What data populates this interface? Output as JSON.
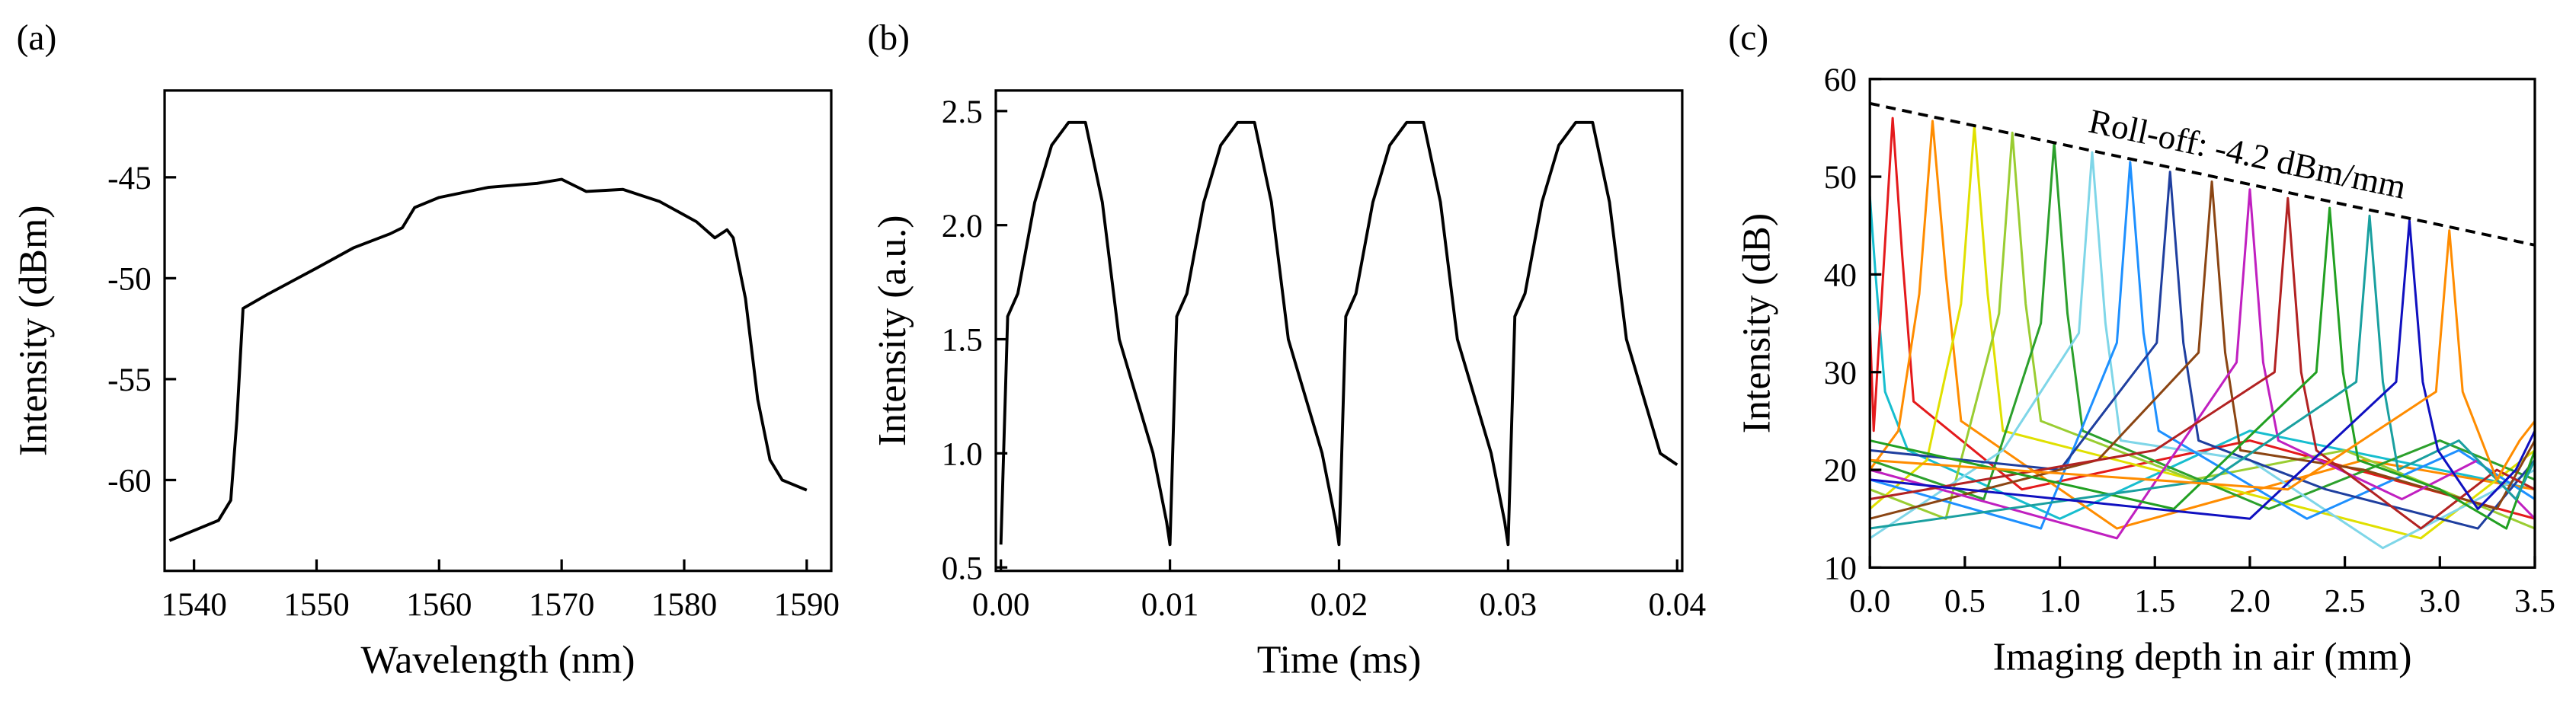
{
  "chart_data": [
    {
      "type": "line",
      "label": "(a)",
      "x_label": "Wavelength (nm)",
      "y_label": "Intensity (dBm)",
      "xlim": [
        1537.6,
        1592
      ],
      "ylim": [
        -64.5,
        -40.7
      ],
      "xticks": [
        1540,
        1550,
        1560,
        1570,
        1580,
        1590
      ],
      "yticks": [
        -45,
        -50,
        -55,
        -60
      ],
      "series": [
        {
          "color": "#000000",
          "x": [
            1538,
            1540,
            1542,
            1543,
            1543.5,
            1544,
            1546,
            1550,
            1553,
            1556,
            1557,
            1558,
            1560,
            1564,
            1568,
            1570,
            1572,
            1575,
            1578,
            1581,
            1582.5,
            1583.5,
            1584,
            1585,
            1586,
            1587,
            1588,
            1590
          ],
          "values": [
            -63,
            -62.5,
            -62,
            -61,
            -57,
            -51.5,
            -50.8,
            -49.5,
            -48.5,
            -47.8,
            -47.5,
            -46.5,
            -46,
            -45.5,
            -45.3,
            -45.1,
            -45.7,
            -45.6,
            -46.2,
            -47.2,
            -48,
            -47.6,
            -48,
            -51,
            -56,
            -59,
            -60,
            -60.5
          ]
        }
      ]
    },
    {
      "type": "line",
      "label": "(b)",
      "x_label": "Time (ms)",
      "y_label": "Intensity (a.u.)",
      "xlim": [
        -0.0003,
        0.0403
      ],
      "ylim": [
        0.485,
        2.59
      ],
      "xticks": [
        {
          "value": 0,
          "label": "0.00"
        },
        {
          "value": 0.01,
          "label": "0.01"
        },
        {
          "value": 0.02,
          "label": "0.02"
        },
        {
          "value": 0.03,
          "label": "0.03"
        },
        {
          "value": 0.04,
          "label": "0.04"
        }
      ],
      "yticks": [
        0.5,
        {
          "value": 1,
          "label": "1.0"
        },
        1.5,
        {
          "value": 2,
          "label": "2.0"
        },
        2.5
      ],
      "series": [
        {
          "color": "#000000",
          "x": [
            0,
            0.0004,
            0.001,
            0.002,
            0.003,
            0.004,
            0.005,
            0.006,
            0.007,
            0.008,
            0.009,
            0.0098,
            0.01,
            0.0104,
            0.011,
            0.012,
            0.013,
            0.014,
            0.015,
            0.016,
            0.017,
            0.018,
            0.019,
            0.0198,
            0.02,
            0.0204,
            0.021,
            0.022,
            0.023,
            0.024,
            0.025,
            0.026,
            0.027,
            0.028,
            0.029,
            0.0298,
            0.03,
            0.0304,
            0.031,
            0.032,
            0.033,
            0.034,
            0.035,
            0.036,
            0.037,
            0.038,
            0.039,
            0.04
          ],
          "values": [
            0.6,
            1.6,
            1.7,
            2.1,
            2.35,
            2.45,
            2.45,
            2.1,
            1.5,
            1.25,
            1.0,
            0.7,
            0.6,
            1.6,
            1.7,
            2.1,
            2.35,
            2.45,
            2.45,
            2.1,
            1.5,
            1.25,
            1.0,
            0.7,
            0.6,
            1.6,
            1.7,
            2.1,
            2.35,
            2.45,
            2.45,
            2.1,
            1.5,
            1.25,
            1.0,
            0.7,
            0.6,
            1.6,
            1.7,
            2.1,
            2.35,
            2.45,
            2.45,
            2.1,
            1.5,
            1.25,
            1.0,
            0.95
          ]
        }
      ]
    },
    {
      "type": "line",
      "label": "(c)",
      "x_label": "Imaging depth in air (mm)",
      "y_label": "Intensity (dB)",
      "xlim": [
        0,
        3.5
      ],
      "ylim": [
        10,
        60
      ],
      "xticks": [
        {
          "value": 0,
          "label": "0.0"
        },
        0.5,
        {
          "value": 1,
          "label": "1.0"
        },
        1.5,
        {
          "value": 2,
          "label": "2.0"
        },
        2.5,
        {
          "value": 3,
          "label": "3.0"
        },
        3.5
      ],
      "yticks": [
        10,
        20,
        30,
        40,
        50,
        60
      ],
      "annotation": "Roll-off: -4.2 dBm/mm",
      "rolloff_line": {
        "x": [
          0,
          3.5
        ],
        "values": [
          57.5,
          43
        ]
      },
      "series": [
        {
          "color": "#17becf",
          "x": [
            0,
            0.03,
            0.08,
            0.2,
            1.0,
            2.0,
            3.5
          ],
          "values": [
            48,
            40,
            28,
            22,
            15,
            24,
            18
          ]
        },
        {
          "color": "#e41a1c",
          "x": [
            0,
            0.02,
            0.07,
            0.12,
            0.17,
            0.23,
            0.8,
            2.0,
            3.5
          ],
          "values": [
            35,
            24,
            40,
            56,
            42,
            27,
            18,
            23,
            15
          ]
        },
        {
          "color": "#ff8c00",
          "x": [
            0,
            0.15,
            0.26,
            0.33,
            0.4,
            0.48,
            1.3,
            2.6,
            3.5
          ],
          "values": [
            20,
            24,
            38,
            55.7,
            40,
            25,
            14,
            21,
            18
          ]
        },
        {
          "color": "#e0e000",
          "x": [
            0,
            0.3,
            0.48,
            0.55,
            0.62,
            0.7,
            1.5,
            2.9,
            3.5
          ],
          "values": [
            16,
            21,
            37,
            55.2,
            38,
            24,
            20,
            13,
            22
          ]
        },
        {
          "color": "#9acd32",
          "x": [
            0,
            0.4,
            0.68,
            0.75,
            0.82,
            0.9,
            1.7,
            2.5,
            3.5
          ],
          "values": [
            18,
            15,
            36,
            54.5,
            37,
            25,
            19,
            22,
            14
          ]
        },
        {
          "color": "#2ca02c",
          "x": [
            0,
            0.6,
            0.9,
            0.97,
            1.04,
            1.12,
            2.1,
            3.0,
            3.5
          ],
          "values": [
            21,
            17,
            35,
            53.5,
            36,
            24,
            16,
            23,
            19
          ]
        },
        {
          "color": "#7fd6e8",
          "x": [
            0,
            0.7,
            1.1,
            1.17,
            1.24,
            1.32,
            2.0,
            2.7,
            3.5
          ],
          "values": [
            13,
            22,
            34,
            52.5,
            35,
            23,
            21,
            12,
            20
          ]
        },
        {
          "color": "#1e90ff",
          "x": [
            0,
            0.9,
            1.3,
            1.37,
            1.44,
            1.52,
            2.3,
            3.1,
            3.5
          ],
          "values": [
            19,
            14,
            33,
            51.5,
            34,
            24,
            15,
            22,
            17
          ]
        },
        {
          "color": "#1f3f9f",
          "x": [
            0,
            1.0,
            1.51,
            1.58,
            1.65,
            1.73,
            2.4,
            3.2,
            3.5
          ],
          "values": [
            22,
            20,
            33,
            50.5,
            33,
            23,
            18,
            14,
            21
          ]
        },
        {
          "color": "#8b4513",
          "x": [
            0,
            1.2,
            1.73,
            1.8,
            1.87,
            1.95,
            2.6,
            3.3,
            3.5
          ],
          "values": [
            15,
            21,
            32,
            49.5,
            32,
            22,
            20,
            16,
            23
          ]
        },
        {
          "color": "#c020c0",
          "x": [
            0,
            1.3,
            1.93,
            2.0,
            2.07,
            2.15,
            2.8,
            3.2,
            3.5
          ],
          "values": [
            20,
            13,
            31,
            48.7,
            31,
            23,
            17,
            21,
            15
          ]
        },
        {
          "color": "#b22222",
          "x": [
            0,
            1.5,
            2.13,
            2.2,
            2.27,
            2.35,
            2.9,
            3.3,
            3.5
          ],
          "values": [
            17,
            22,
            30,
            47.8,
            30,
            22,
            14,
            20,
            18
          ]
        },
        {
          "color": "#22a022",
          "x": [
            0,
            1.6,
            2.35,
            2.42,
            2.49,
            2.57,
            3.0,
            3.35,
            3.5
          ],
          "values": [
            23,
            16,
            30,
            46.8,
            30,
            21,
            18,
            14,
            22
          ]
        },
        {
          "color": "#1aa0a0",
          "x": [
            0,
            1.8,
            2.56,
            2.63,
            2.7,
            2.78,
            3.1,
            3.4,
            3.5
          ],
          "values": [
            14,
            19,
            29,
            46,
            29,
            20,
            23,
            17,
            21
          ]
        },
        {
          "color": "#1010c0",
          "x": [
            0,
            2.0,
            2.77,
            2.84,
            2.91,
            2.99,
            3.2,
            3.4,
            3.5
          ],
          "values": [
            19,
            15,
            29,
            45.5,
            29,
            22,
            16,
            20,
            24
          ]
        },
        {
          "color": "#ff8c00",
          "x": [
            0,
            2.2,
            2.98,
            3.05,
            3.12,
            3.2,
            3.3,
            3.42,
            3.5
          ],
          "values": [
            21,
            18,
            28,
            44.5,
            28,
            24,
            19,
            23,
            25
          ]
        }
      ]
    }
  ]
}
